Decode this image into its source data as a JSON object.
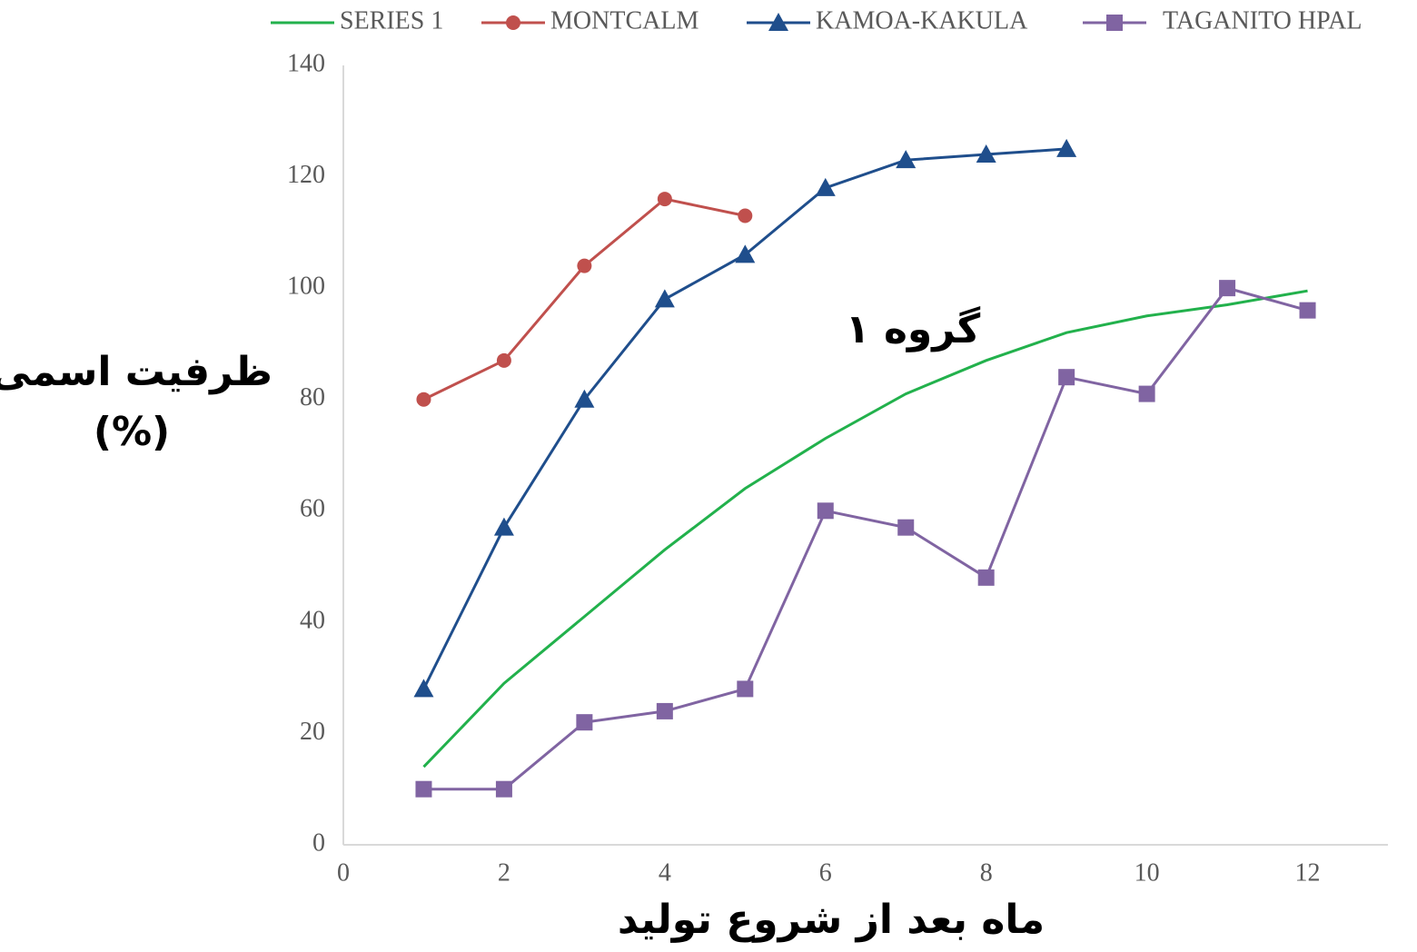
{
  "chart_data": {
    "type": "line",
    "ylabel": [
      "ظرفیت اسمی",
      "(%)"
    ],
    "xlabel": "ماه بعد از شروع تولید",
    "annotation": "گروه ۱",
    "xlim": [
      0,
      13
    ],
    "xticks": [
      0,
      2,
      4,
      6,
      8,
      10,
      12
    ],
    "ylim": [
      0,
      140
    ],
    "yticks": [
      0,
      20,
      40,
      60,
      80,
      100,
      120,
      140
    ],
    "series": [
      {
        "name": "SERIES 1",
        "color": "#22b14c",
        "marker": "none",
        "x": [
          1,
          2,
          3,
          4,
          5,
          6,
          7,
          8,
          9,
          10,
          11,
          12
        ],
        "values": [
          14,
          29,
          41,
          53,
          64,
          73,
          81,
          87,
          92,
          95,
          97,
          99.5
        ]
      },
      {
        "name": "MONTCALM",
        "color": "#c0504d",
        "marker": "circle",
        "x": [
          1,
          2,
          3,
          4,
          5
        ],
        "values": [
          80,
          87,
          104,
          116,
          113
        ]
      },
      {
        "name": "KAMOA-KAKULA",
        "color": "#1f4e8c",
        "marker": "triangle",
        "x": [
          1,
          2,
          3,
          4,
          5,
          6,
          7,
          8,
          9
        ],
        "values": [
          28,
          57,
          80,
          98,
          106,
          118,
          123,
          124,
          125
        ]
      },
      {
        "name": "TAGANITO HPAL",
        "color": "#8064a2",
        "marker": "square",
        "x": [
          1,
          2,
          3,
          4,
          5,
          6,
          7,
          8,
          9,
          10,
          11,
          12
        ],
        "values": [
          10,
          10,
          22,
          24,
          28,
          60,
          57,
          48,
          84,
          81,
          100,
          96
        ]
      }
    ]
  }
}
